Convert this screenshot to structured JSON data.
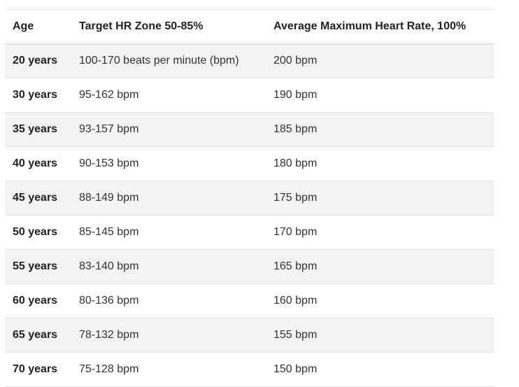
{
  "table": {
    "headers": [
      "Age",
      "Target HR Zone 50-85%",
      "Average Maximum Heart Rate, 100%"
    ],
    "rows": [
      {
        "age": "20 years",
        "zone": "100-170 beats per minute (bpm)",
        "max": "200 bpm"
      },
      {
        "age": "30 years",
        "zone": "95-162 bpm",
        "max": "190 bpm"
      },
      {
        "age": "35 years",
        "zone": "93-157 bpm",
        "max": "185 bpm"
      },
      {
        "age": "40 years",
        "zone": "90-153 bpm",
        "max": "180 bpm"
      },
      {
        "age": "45 years",
        "zone": "88-149 bpm",
        "max": "175 bpm"
      },
      {
        "age": "50 years",
        "zone": "85-145 bpm",
        "max": "170 bpm"
      },
      {
        "age": "55 years",
        "zone": "83-140 bpm",
        "max": "165 bpm"
      },
      {
        "age": "60 years",
        "zone": "80-136 bpm",
        "max": "160 bpm"
      },
      {
        "age": "65 years",
        "zone": "78-132 bpm",
        "max": "155 bpm"
      },
      {
        "age": "70 years",
        "zone": "75-128 bpm",
        "max": "150 bpm"
      }
    ]
  },
  "colors": {
    "stripe": "#f2f2f2",
    "border": "#e3e3e3",
    "text": "#333333",
    "heading": "#222222"
  }
}
